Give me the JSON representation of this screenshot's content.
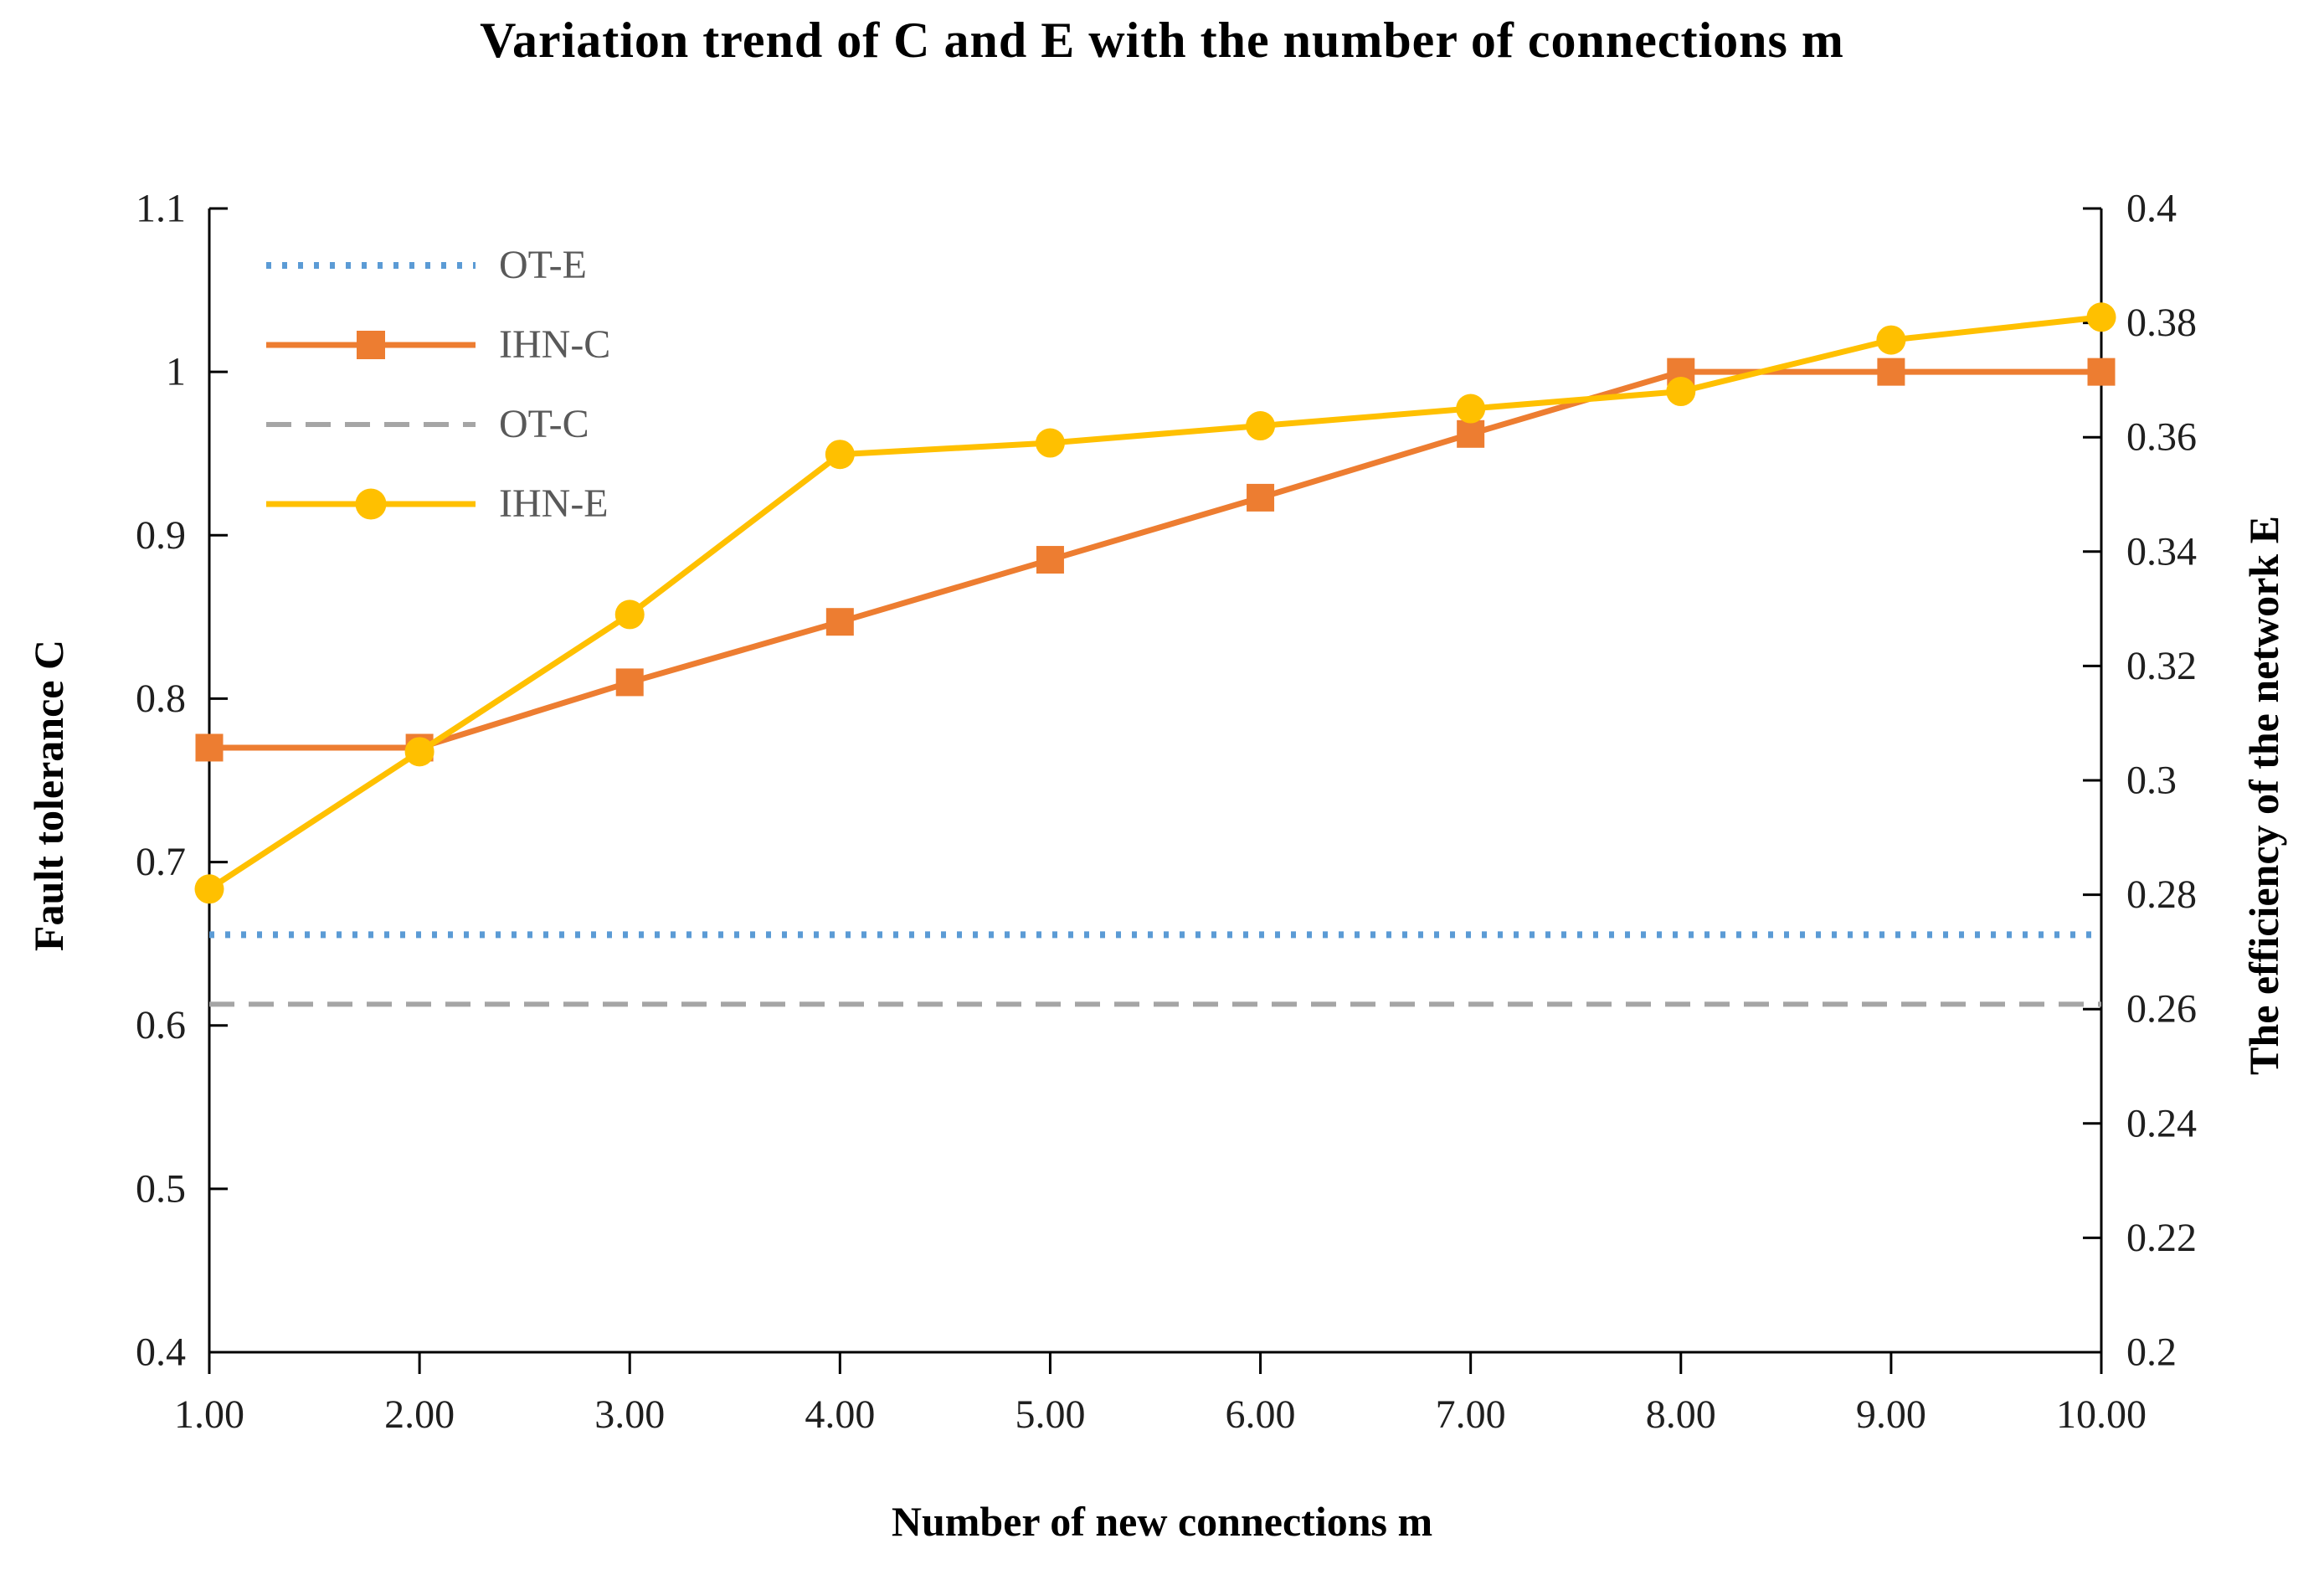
{
  "chart_data": {
    "type": "line",
    "title": "Variation trend of C and E with the number of connections m",
    "xlabel": "Number of new connections m",
    "ylabel_left": "Fault tolerance C",
    "ylabel_right": "The efficiency of the network E",
    "grid": false,
    "legend_position": "top-left-inside",
    "x": [
      1,
      2,
      3,
      4,
      5,
      6,
      7,
      8,
      9,
      10
    ],
    "x_tick_labels": [
      "1.00",
      "2.00",
      "3.00",
      "4.00",
      "5.00",
      "6.00",
      "7.00",
      "8.00",
      "9.00",
      "10.00"
    ],
    "left_axis": {
      "min": 0.4,
      "max": 1.1,
      "ticks": [
        1.1,
        1.0,
        0.9,
        0.8,
        0.7,
        0.6,
        0.5,
        0.4
      ],
      "tick_labels": [
        "1.1",
        "1",
        "0.9",
        "0.8",
        "0.7",
        "0.6",
        "0.5",
        "0.4"
      ]
    },
    "right_axis": {
      "min": 0.2,
      "max": 0.4,
      "ticks": [
        0.4,
        0.38,
        0.36,
        0.34,
        0.32,
        0.3,
        0.28,
        0.26,
        0.24,
        0.22,
        0.2
      ],
      "tick_labels": [
        "0.4",
        "0.38",
        "0.36",
        "0.34",
        "0.32",
        "0.3",
        "0.28",
        "0.26",
        "0.24",
        "0.22",
        "0.2"
      ]
    },
    "series": [
      {
        "name": "OT-E",
        "axis": "right",
        "kind": "constant",
        "value": 0.273,
        "color": "#5B9BD5",
        "style": "dotted",
        "marker": "none"
      },
      {
        "name": "IHN-C",
        "axis": "left",
        "kind": "points",
        "values": [
          0.77,
          0.77,
          0.81,
          0.847,
          0.885,
          0.923,
          0.962,
          1.0,
          1.0,
          1.0
        ],
        "color": "#ED7D31",
        "style": "solid",
        "marker": "square"
      },
      {
        "name": "OT-C",
        "axis": "left",
        "kind": "constant",
        "value": 0.613,
        "color": "#A5A5A5",
        "style": "dashed",
        "marker": "none"
      },
      {
        "name": "IHN-E",
        "axis": "right",
        "kind": "points",
        "values": [
          0.281,
          0.305,
          0.329,
          0.357,
          0.359,
          0.362,
          0.365,
          0.368,
          0.377,
          0.381
        ],
        "color": "#FFC000",
        "style": "solid",
        "marker": "circle"
      }
    ],
    "colors": {
      "axis": "#000000",
      "tick_label": "#1f1f1f",
      "legend_text": "#595959",
      "background": "#ffffff"
    }
  }
}
